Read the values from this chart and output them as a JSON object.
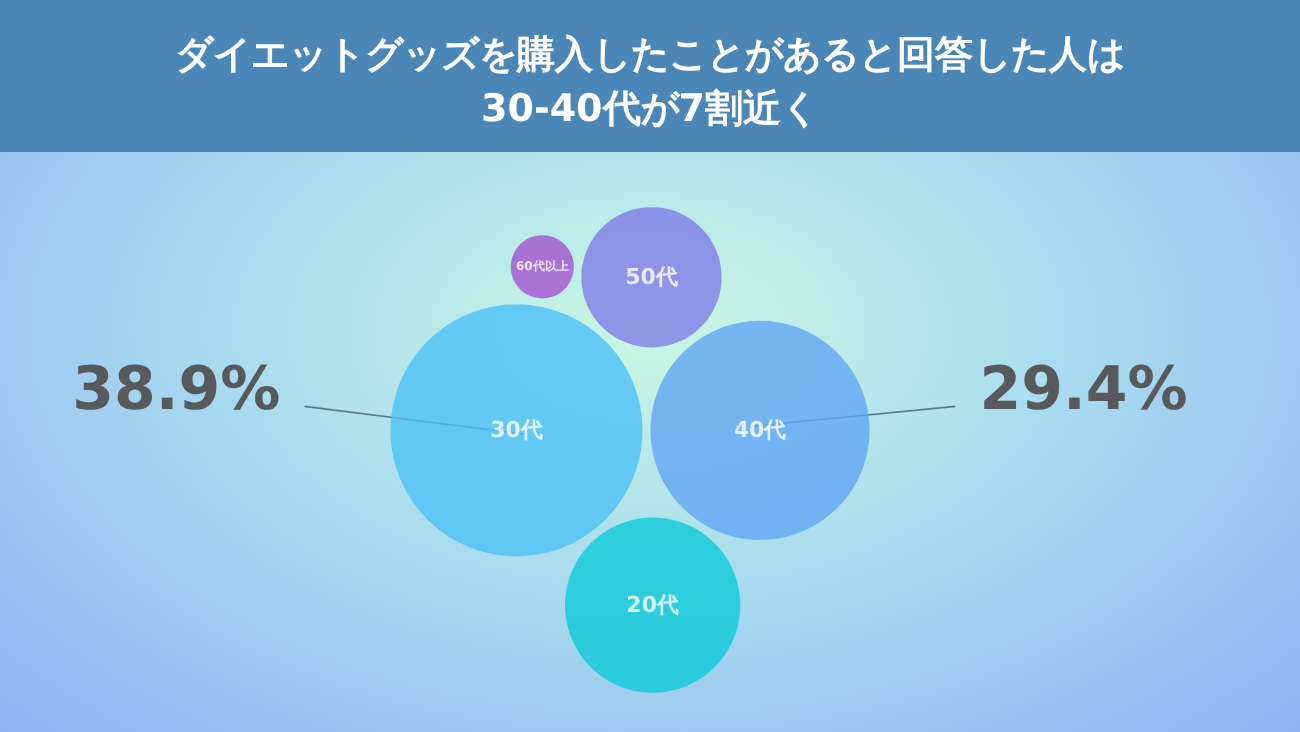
{
  "chart_data": {
    "type": "other",
    "title": "ダイエットグッズを購入したことがあると回答した人は30-40代が7割近く",
    "categories": [
      "30代",
      "40代",
      "20代",
      "50代",
      "60代以上"
    ],
    "values": [
      38.9,
      29.4,
      null,
      null,
      null
    ],
    "value_labels": [
      "38.9%",
      "29.4%",
      null,
      null,
      null
    ],
    "colors": [
      "#4cc0f7",
      "#62a6f4",
      "#0ccad8",
      "#807de6",
      "#a552d0"
    ]
  }
}
